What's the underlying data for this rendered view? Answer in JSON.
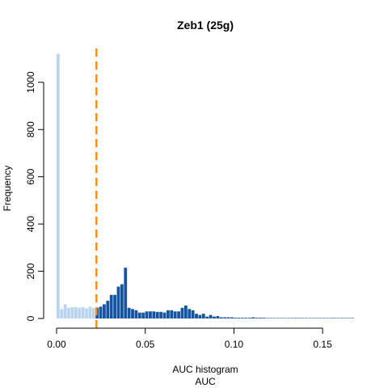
{
  "chart_data": {
    "type": "bar",
    "title": "Zeb1 (25g)",
    "xlabel": "AUC",
    "sublabel": "AUC histogram",
    "ylabel": "Frequency",
    "xlim": [
      -0.005,
      0.17
    ],
    "ylim": [
      0,
      1150
    ],
    "xticks": [
      "0.00",
      "0.05",
      "0.10",
      "0.15"
    ],
    "xtick_values": [
      0,
      0.05,
      0.1,
      0.15
    ],
    "yticks": [
      "0",
      "200",
      "400",
      "600",
      "800",
      "1000"
    ],
    "ytick_values": [
      0,
      200,
      400,
      600,
      800,
      1000
    ],
    "bin_width": 0.002,
    "bin_start": 0,
    "threshold": 0.0225,
    "colors": {
      "below": "#bad4ef",
      "above": "#1554a0",
      "threshold": "#ff8c00"
    },
    "values": [
      1120,
      40,
      60,
      45,
      48,
      48,
      45,
      48,
      42,
      50,
      45,
      45,
      50,
      60,
      75,
      100,
      100,
      135,
      145,
      215,
      45,
      40,
      35,
      25,
      25,
      30,
      30,
      30,
      28,
      28,
      25,
      35,
      35,
      30,
      30,
      45,
      55,
      40,
      35,
      20,
      15,
      20,
      8,
      15,
      8,
      10,
      5,
      5,
      5,
      5,
      3,
      3,
      3,
      3,
      3,
      5,
      3,
      3,
      3,
      2,
      2,
      2,
      2,
      2,
      2,
      2,
      2,
      2,
      2,
      2,
      2,
      2,
      2,
      2,
      2,
      2,
      2,
      2,
      2,
      2,
      2,
      2,
      2,
      2
    ]
  }
}
